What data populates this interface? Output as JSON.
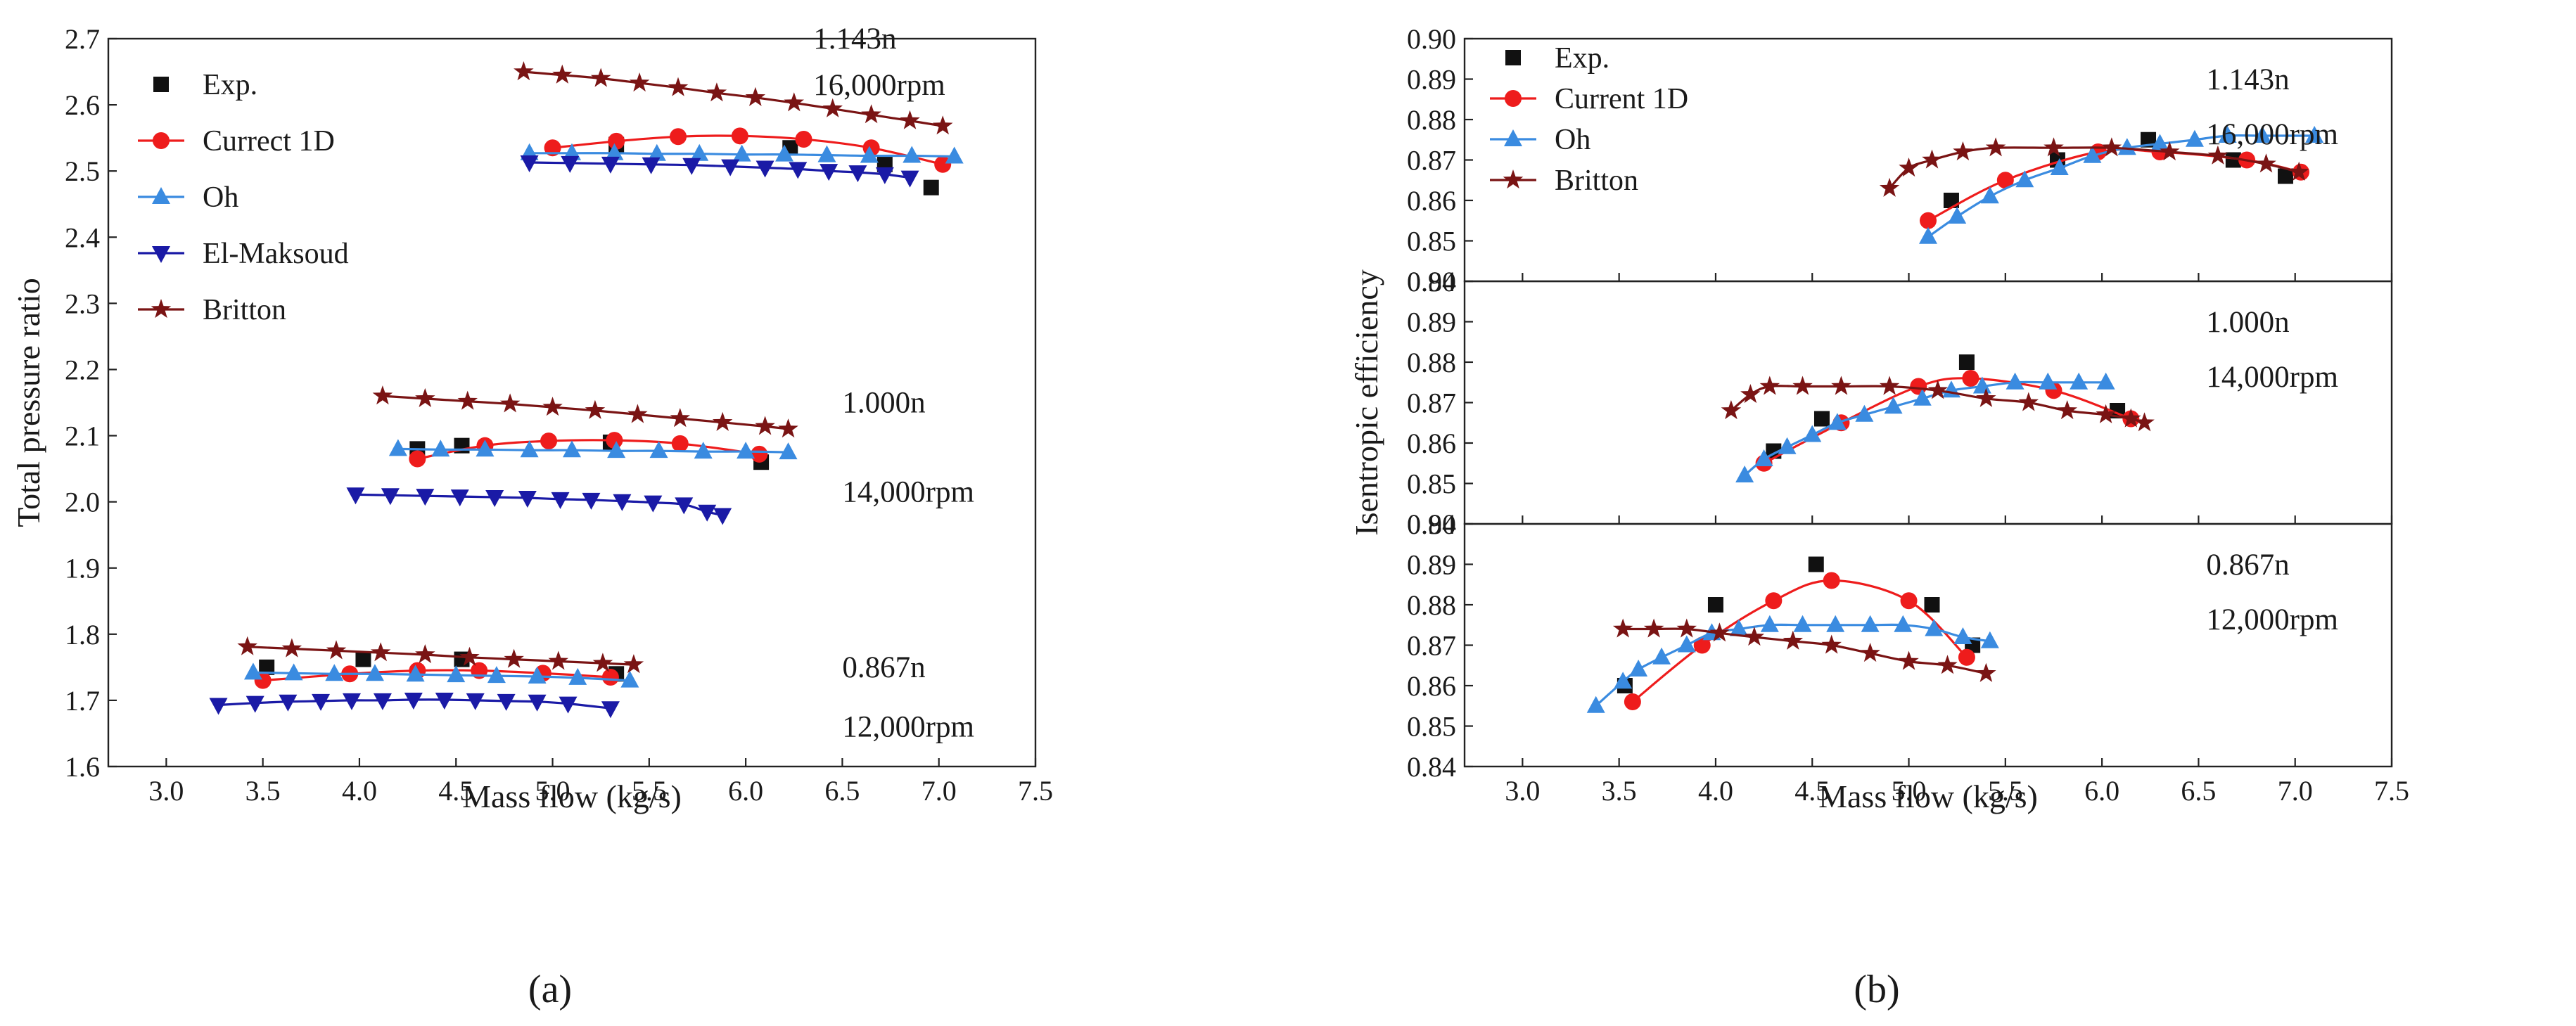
{
  "figure": {
    "caption_a": "(a)",
    "caption_b": "(b)"
  },
  "colors": {
    "Exp.": "#111111",
    "Currect 1D": "#ee1c1c",
    "Current 1D": "#ee1c1c",
    "Oh": "#3a8be0",
    "El-Maksoud": "#1a1aa6",
    "Britton": "#7a1414"
  },
  "chart_data": [
    {
      "id": "a",
      "type": "line",
      "xlabel": "Mass flow (kg/s)",
      "ylabel": "Total pressure ratio",
      "xlim": [
        2.7,
        7.5
      ],
      "ylim": [
        1.6,
        2.7
      ],
      "xticks": [
        "3.0",
        "3.5",
        "4.0",
        "4.5",
        "5.0",
        "5.5",
        "6.0",
        "6.5",
        "7.0",
        "7.5"
      ],
      "yticks": [
        "1.6",
        "1.7",
        "1.8",
        "1.9",
        "2.0",
        "2.1",
        "2.2",
        "2.3",
        "2.4",
        "2.5",
        "2.6",
        "2.7"
      ],
      "legend": [
        "Exp.",
        "Currect 1D",
        "Oh",
        "El-Maksoud",
        "Britton"
      ],
      "annotations": [
        {
          "text": "1.143n",
          "x": 6.35,
          "y": 2.685
        },
        {
          "text": "16,000rpm",
          "x": 6.35,
          "y": 2.615
        },
        {
          "text": "1.000n",
          "x": 6.5,
          "y": 2.135
        },
        {
          "text": "14,000rpm",
          "x": 6.5,
          "y": 2.0
        },
        {
          "text": "0.867n",
          "x": 6.5,
          "y": 1.735
        },
        {
          "text": "12,000rpm",
          "x": 6.5,
          "y": 1.645
        }
      ],
      "series": [
        {
          "name": "Exp.",
          "marker": "square",
          "line": false,
          "x": [
            5.33,
            6.23,
            6.72,
            6.96,
            4.3,
            4.53,
            5.3,
            6.08,
            3.52,
            4.02,
            4.53,
            5.33
          ],
          "y": [
            2.54,
            2.535,
            2.51,
            2.475,
            2.08,
            2.085,
            2.09,
            2.06,
            1.75,
            1.762,
            1.762,
            1.74
          ]
        },
        {
          "name": "Currect 1D",
          "marker": "circle",
          "line": true,
          "groups": [
            {
              "x": [
                5.0,
                5.33,
                5.65,
                5.97,
                6.3,
                6.65,
                7.02
              ],
              "y": [
                2.535,
                2.545,
                2.552,
                2.553,
                2.548,
                2.535,
                2.51
              ]
            },
            {
              "x": [
                4.3,
                4.65,
                4.98,
                5.32,
                5.66,
                6.07
              ],
              "y": [
                2.065,
                2.085,
                2.092,
                2.093,
                2.088,
                2.072
              ]
            },
            {
              "x": [
                3.5,
                3.95,
                4.3,
                4.62,
                4.95,
                5.3
              ],
              "y": [
                1.73,
                1.74,
                1.745,
                1.745,
                1.741,
                1.735
              ]
            }
          ]
        },
        {
          "name": "Oh",
          "marker": "triangle-up",
          "line": true,
          "groups": [
            {
              "x": [
                4.88,
                5.1,
                5.32,
                5.54,
                5.76,
                5.98,
                6.2,
                6.42,
                6.64,
                6.86,
                7.08
              ],
              "y": [
                2.527,
                2.527,
                2.527,
                2.526,
                2.526,
                2.525,
                2.525,
                2.524,
                2.523,
                2.523,
                2.522
              ]
            },
            {
              "x": [
                4.2,
                4.42,
                4.65,
                4.88,
                5.1,
                5.33,
                5.55,
                5.78,
                6.0,
                6.22
              ],
              "y": [
                2.08,
                2.079,
                2.079,
                2.078,
                2.078,
                2.077,
                2.077,
                2.076,
                2.076,
                2.075
              ]
            },
            {
              "x": [
                3.45,
                3.66,
                3.87,
                4.08,
                4.29,
                4.5,
                4.71,
                4.92,
                5.13,
                5.4
              ],
              "y": [
                1.742,
                1.741,
                1.74,
                1.74,
                1.739,
                1.738,
                1.737,
                1.736,
                1.734,
                1.73
              ]
            }
          ]
        },
        {
          "name": "El-Maksoud",
          "marker": "triangle-down",
          "line": true,
          "groups": [
            {
              "x": [
                4.88,
                5.09,
                5.3,
                5.51,
                5.72,
                5.92,
                6.1,
                6.27,
                6.43,
                6.58,
                6.72,
                6.85
              ],
              "y": [
                2.513,
                2.512,
                2.511,
                2.51,
                2.509,
                2.507,
                2.505,
                2.503,
                2.5,
                2.498,
                2.495,
                2.49
              ]
            },
            {
              "x": [
                3.98,
                4.16,
                4.34,
                4.52,
                4.7,
                4.87,
                5.04,
                5.2,
                5.36,
                5.52,
                5.68,
                5.8,
                5.88
              ],
              "y": [
                2.011,
                2.01,
                2.009,
                2.008,
                2.007,
                2.006,
                2.004,
                2.003,
                2.001,
                1.999,
                1.996,
                1.985,
                1.98
              ]
            },
            {
              "x": [
                3.27,
                3.46,
                3.63,
                3.8,
                3.96,
                4.12,
                4.28,
                4.44,
                4.6,
                4.76,
                4.92,
                5.08,
                5.3
              ],
              "y": [
                1.693,
                1.696,
                1.698,
                1.699,
                1.7,
                1.7,
                1.701,
                1.701,
                1.7,
                1.699,
                1.698,
                1.695,
                1.688
              ]
            }
          ]
        },
        {
          "name": "Britton",
          "marker": "star",
          "line": true,
          "groups": [
            {
              "x": [
                4.85,
                5.05,
                5.25,
                5.45,
                5.65,
                5.85,
                6.05,
                6.25,
                6.45,
                6.65,
                6.85,
                7.02
              ],
              "y": [
                2.65,
                2.645,
                2.64,
                2.633,
                2.626,
                2.618,
                2.611,
                2.603,
                2.594,
                2.585,
                2.576,
                2.568
              ]
            },
            {
              "x": [
                4.12,
                4.34,
                4.56,
                4.78,
                5.0,
                5.22,
                5.44,
                5.66,
                5.88,
                6.1,
                6.22
              ],
              "y": [
                2.16,
                2.156,
                2.152,
                2.148,
                2.143,
                2.138,
                2.132,
                2.126,
                2.12,
                2.114,
                2.11
              ]
            },
            {
              "x": [
                3.42,
                3.65,
                3.88,
                4.11,
                4.34,
                4.57,
                4.8,
                5.03,
                5.26,
                5.42
              ],
              "y": [
                1.781,
                1.778,
                1.775,
                1.772,
                1.769,
                1.765,
                1.762,
                1.759,
                1.756,
                1.754
              ]
            }
          ]
        }
      ]
    },
    {
      "id": "b",
      "type": "line",
      "xlabel": "Mass flow (kg/s)",
      "ylabel": "Isentropic efficiency",
      "xlim": [
        2.7,
        7.5
      ],
      "xticks": [
        "3.0",
        "3.5",
        "4.0",
        "4.5",
        "5.0",
        "5.5",
        "6.0",
        "6.5",
        "7.0",
        "7.5"
      ],
      "legend": [
        "Exp.",
        "Current 1D",
        "Oh",
        "Britton"
      ],
      "panels": [
        {
          "speed": "1.143n",
          "rpm": "16,000rpm",
          "ylim": [
            0.84,
            0.9
          ],
          "yticks": [
            "0.84",
            "0.85",
            "0.86",
            "0.87",
            "0.88",
            "0.89",
            "0.90"
          ],
          "series": [
            {
              "name": "Exp.",
              "marker": "square",
              "line": false,
              "x": [
                5.22,
                5.77,
                6.24,
                6.68,
                6.95
              ],
              "y": [
                0.86,
                0.87,
                0.875,
                0.87,
                0.866
              ]
            },
            {
              "name": "Current 1D",
              "marker": "circle",
              "line": true,
              "x": [
                5.1,
                5.5,
                5.98,
                6.3,
                6.75,
                7.03
              ],
              "y": [
                0.855,
                0.865,
                0.872,
                0.872,
                0.87,
                0.867
              ]
            },
            {
              "name": "Oh",
              "marker": "triangle-up",
              "line": true,
              "x": [
                5.1,
                5.25,
                5.42,
                5.6,
                5.78,
                5.95,
                6.13,
                6.3,
                6.48,
                6.65,
                6.83,
                7.1
              ],
              "y": [
                0.851,
                0.856,
                0.861,
                0.865,
                0.868,
                0.871,
                0.873,
                0.874,
                0.875,
                0.876,
                0.876,
                0.876
              ]
            },
            {
              "name": "Britton",
              "marker": "star",
              "line": true,
              "x": [
                4.9,
                5.0,
                5.12,
                5.28,
                5.45,
                5.75,
                6.05,
                6.35,
                6.6,
                6.85,
                7.02
              ],
              "y": [
                0.863,
                0.868,
                0.87,
                0.872,
                0.873,
                0.873,
                0.873,
                0.872,
                0.871,
                0.869,
                0.867
              ]
            }
          ]
        },
        {
          "speed": "1.000n",
          "rpm": "14,000rpm",
          "ylim": [
            0.84,
            0.9
          ],
          "yticks": [
            "0.84",
            "0.85",
            "0.86",
            "0.87",
            "0.88",
            "0.89",
            "0.90"
          ],
          "series": [
            {
              "name": "Exp.",
              "marker": "square",
              "line": false,
              "x": [
                4.3,
                4.55,
                5.3,
                6.08
              ],
              "y": [
                0.858,
                0.866,
                0.88,
                0.868
              ]
            },
            {
              "name": "Current 1D",
              "marker": "circle",
              "line": true,
              "x": [
                4.25,
                4.65,
                5.05,
                5.32,
                5.75,
                6.15
              ],
              "y": [
                0.855,
                0.865,
                0.874,
                0.876,
                0.873,
                0.866
              ]
            },
            {
              "name": "Oh",
              "marker": "triangle-up",
              "line": true,
              "x": [
                4.15,
                4.25,
                4.37,
                4.5,
                4.63,
                4.77,
                4.92,
                5.07,
                5.22,
                5.38,
                5.55,
                5.72,
                5.88,
                6.02
              ],
              "y": [
                0.852,
                0.856,
                0.859,
                0.862,
                0.865,
                0.867,
                0.869,
                0.871,
                0.873,
                0.874,
                0.875,
                0.875,
                0.875,
                0.875
              ]
            },
            {
              "name": "Britton",
              "marker": "star",
              "line": true,
              "x": [
                4.08,
                4.18,
                4.28,
                4.45,
                4.65,
                4.9,
                5.15,
                5.4,
                5.62,
                5.82,
                6.02,
                6.15,
                6.22
              ],
              "y": [
                0.868,
                0.872,
                0.874,
                0.874,
                0.874,
                0.874,
                0.873,
                0.871,
                0.87,
                0.868,
                0.867,
                0.866,
                0.865
              ]
            }
          ]
        },
        {
          "speed": "0.867n",
          "rpm": "12,000rpm",
          "ylim": [
            0.84,
            0.9
          ],
          "yticks": [
            "0.84",
            "0.85",
            "0.86",
            "0.87",
            "0.88",
            "0.89",
            "0.90"
          ],
          "series": [
            {
              "name": "Exp.",
              "marker": "square",
              "line": false,
              "x": [
                3.53,
                4.0,
                4.52,
                5.12,
                5.33
              ],
              "y": [
                0.86,
                0.88,
                0.89,
                0.88,
                0.87
              ]
            },
            {
              "name": "Current 1D",
              "marker": "circle",
              "line": true,
              "x": [
                3.57,
                3.93,
                4.3,
                4.6,
                5.0,
                5.3
              ],
              "y": [
                0.856,
                0.87,
                0.881,
                0.886,
                0.881,
                0.867
              ]
            },
            {
              "name": "Oh",
              "marker": "triangle-up",
              "line": true,
              "x": [
                3.38,
                3.52,
                3.6,
                3.72,
                3.85,
                3.98,
                4.12,
                4.28,
                4.45,
                4.62,
                4.8,
                4.97,
                5.13,
                5.28,
                5.42
              ],
              "y": [
                0.855,
                0.861,
                0.864,
                0.867,
                0.87,
                0.873,
                0.874,
                0.875,
                0.875,
                0.875,
                0.875,
                0.875,
                0.874,
                0.872,
                0.871
              ]
            },
            {
              "name": "Britton",
              "marker": "star",
              "line": true,
              "x": [
                3.52,
                3.68,
                3.85,
                4.02,
                4.2,
                4.4,
                4.6,
                4.8,
                5.0,
                5.2,
                5.4
              ],
              "y": [
                0.874,
                0.874,
                0.874,
                0.873,
                0.872,
                0.871,
                0.87,
                0.868,
                0.866,
                0.865,
                0.863
              ]
            }
          ]
        }
      ]
    }
  ]
}
